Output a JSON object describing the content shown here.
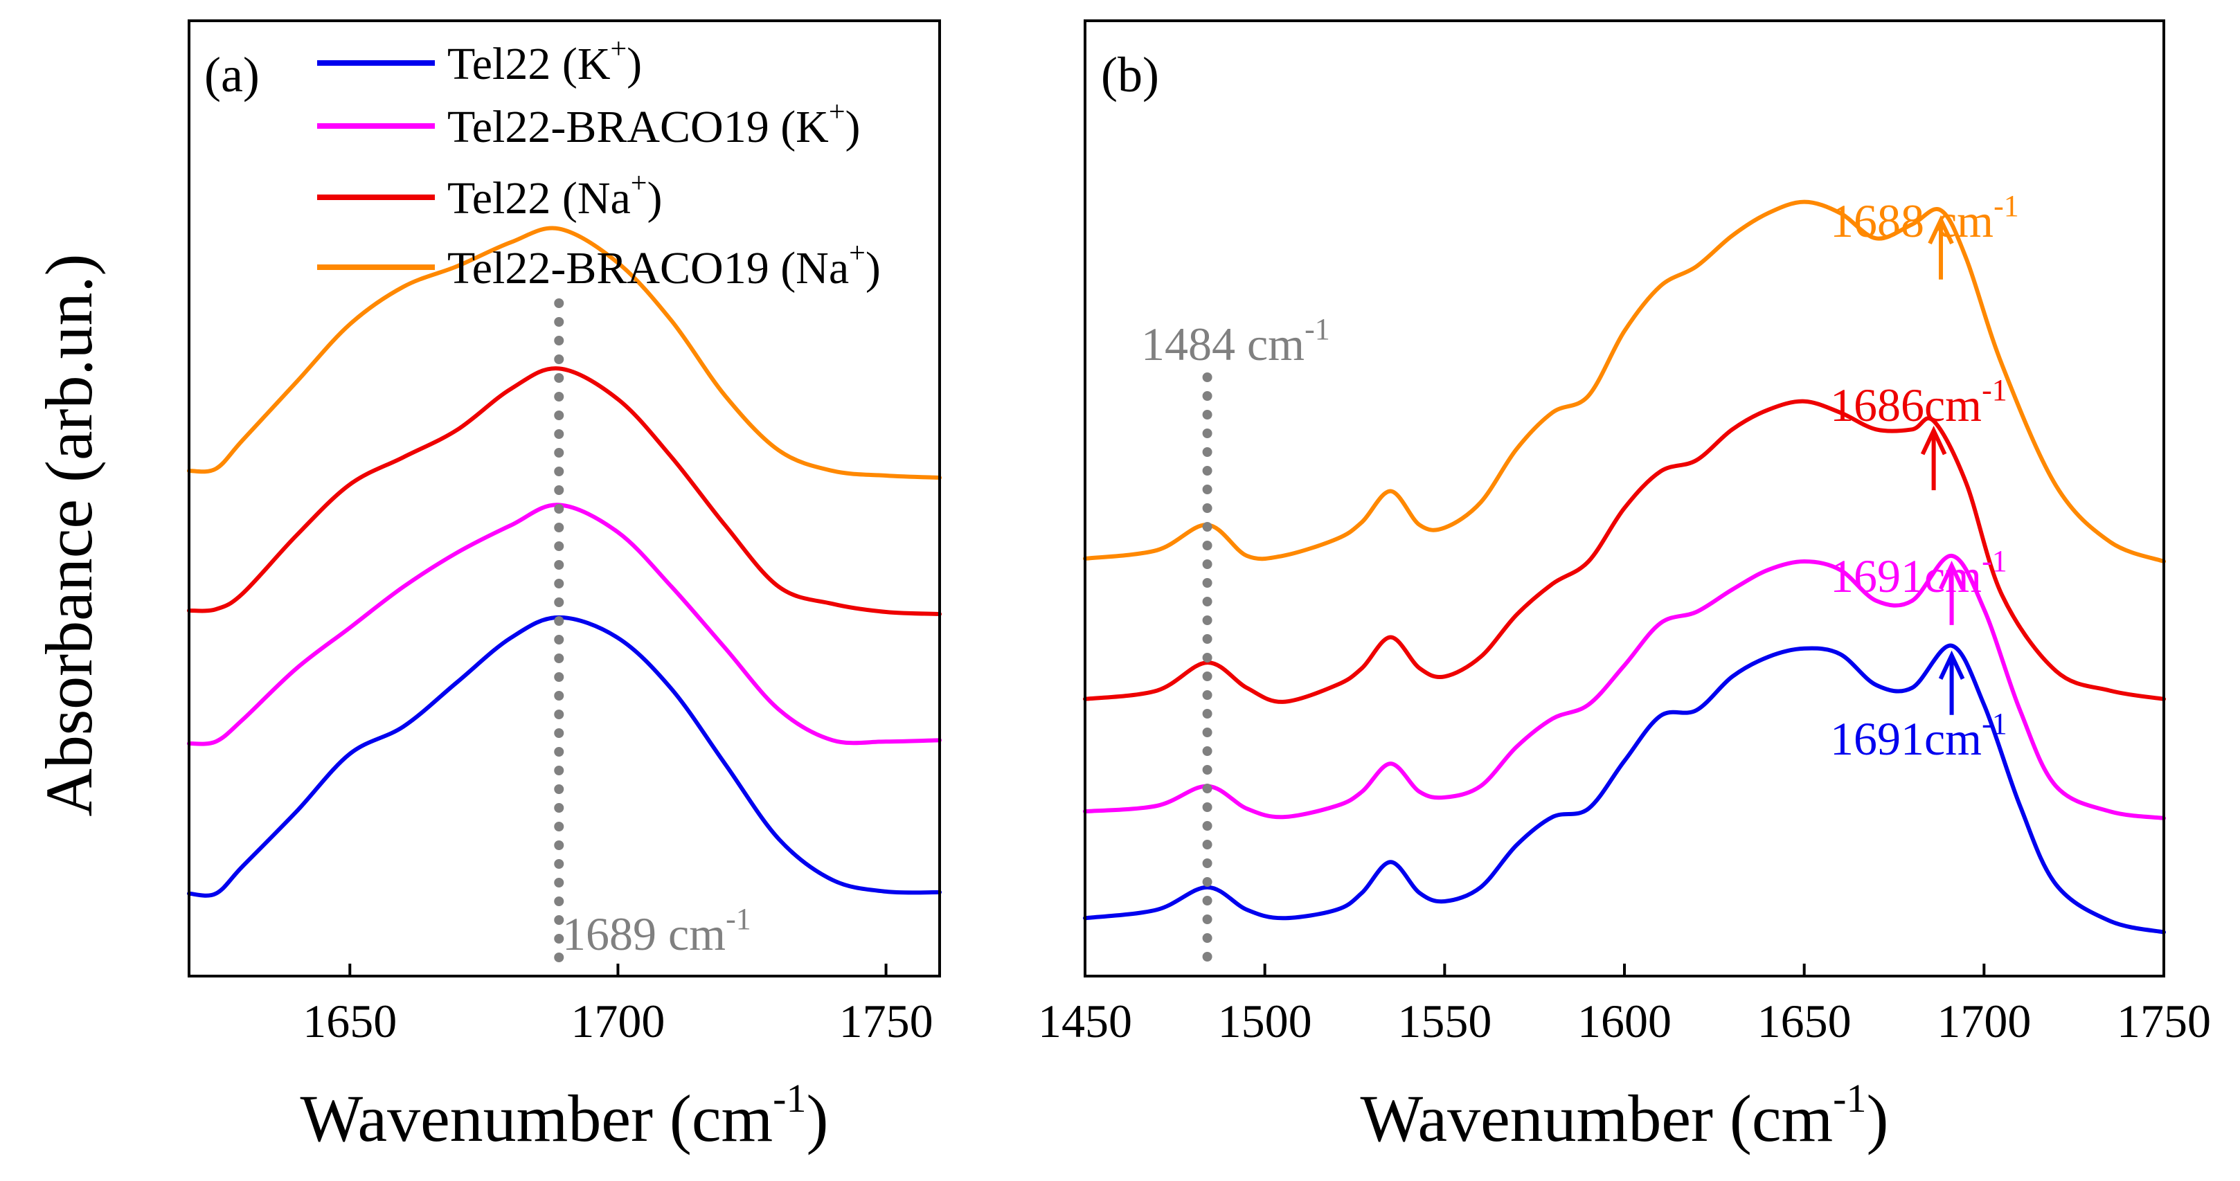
{
  "figure": {
    "ylabel": "Absorbance (arb.un.)"
  },
  "colors": {
    "tel22_k": "#0000ee",
    "tel22_braco19_k": "#ff00ff",
    "tel22_na": "#ee0000",
    "tel22_braco19_na": "#ff8800",
    "marker": "#808080",
    "axis": "#000000"
  },
  "chart_data": [
    {
      "id": "a",
      "type": "line",
      "panel_label": "(a)",
      "xlabel": "Wavenumber (cm",
      "xlabel_sup": "-1",
      "xlabel_end": ")",
      "xlim": [
        1620,
        1760
      ],
      "ylim": [
        0,
        10
      ],
      "xticks": [
        1650,
        1700,
        1750
      ],
      "legend": [
        {
          "key": "tel22_k",
          "label": "Tel22 (K",
          "sup": "+",
          "end": ")"
        },
        {
          "key": "tel22_braco19_k",
          "label": "Tel22-BRACO19 (K",
          "sup": "+",
          "end": ")"
        },
        {
          "key": "tel22_na",
          "label": "Tel22 (Na",
          "sup": "+",
          "end": ")"
        },
        {
          "key": "tel22_braco19_na",
          "label": "Tel22-BRACO19 (Na",
          "sup": "+",
          "end": ")"
        }
      ],
      "series": [
        {
          "key": "tel22_k",
          "name": "Tel22 (K+)",
          "x": [
            1620,
            1625,
            1630,
            1640,
            1650,
            1660,
            1670,
            1680,
            1689,
            1700,
            1710,
            1720,
            1730,
            1740,
            1750,
            1760
          ],
          "y": [
            0.55,
            0.55,
            0.95,
            1.75,
            2.6,
            3.0,
            3.65,
            4.3,
            4.6,
            4.3,
            3.55,
            2.45,
            1.35,
            0.75,
            0.58,
            0.57
          ]
        },
        {
          "key": "tel22_braco19_k",
          "name": "Tel22-BRACO19 (K+)",
          "x": [
            1620,
            1625,
            1630,
            1640,
            1650,
            1660,
            1670,
            1680,
            1689,
            1700,
            1710,
            1720,
            1730,
            1740,
            1750,
            1760
          ],
          "y": [
            2.75,
            2.78,
            3.1,
            3.85,
            4.45,
            5.05,
            5.55,
            5.95,
            6.25,
            5.85,
            5.05,
            4.15,
            3.25,
            2.8,
            2.78,
            2.8
          ]
        },
        {
          "key": "tel22_na",
          "name": "Tel22 (Na+)",
          "x": [
            1620,
            1625,
            1630,
            1640,
            1650,
            1660,
            1670,
            1680,
            1689,
            1700,
            1710,
            1720,
            1730,
            1740,
            1750,
            1760
          ],
          "y": [
            4.7,
            4.72,
            4.95,
            5.8,
            6.55,
            6.95,
            7.35,
            7.95,
            8.25,
            7.8,
            6.95,
            5.95,
            5.05,
            4.8,
            4.68,
            4.65
          ]
        },
        {
          "key": "tel22_braco19_na",
          "name": "Tel22-BRACO19 (Na+)",
          "x": [
            1620,
            1625,
            1630,
            1640,
            1650,
            1660,
            1670,
            1680,
            1689,
            1700,
            1710,
            1720,
            1730,
            1740,
            1750,
            1760
          ],
          "y": [
            6.75,
            6.78,
            7.2,
            8.05,
            8.9,
            9.45,
            9.75,
            10.1,
            10.3,
            9.8,
            8.95,
            7.85,
            7.05,
            6.75,
            6.68,
            6.65
          ]
        }
      ],
      "vline": {
        "x": 1689,
        "label": "1689 cm",
        "sup": "-1"
      }
    },
    {
      "id": "b",
      "type": "line",
      "panel_label": "(b)",
      "xlabel": "Wavenumber (cm",
      "xlabel_sup": "-1",
      "xlabel_end": ")",
      "xlim": [
        1450,
        1750
      ],
      "ylim": [
        0,
        13
      ],
      "xticks": [
        1450,
        1500,
        1550,
        1600,
        1650,
        1700,
        1750
      ],
      "series": [
        {
          "key": "tel22_k",
          "name": "Tel22 (K+)",
          "x": [
            1450,
            1470,
            1484,
            1495,
            1505,
            1520,
            1527,
            1535,
            1543,
            1550,
            1560,
            1570,
            1580,
            1590,
            1600,
            1610,
            1620,
            1630,
            1640,
            1650,
            1660,
            1670,
            1680,
            1691,
            1700,
            1710,
            1720,
            1735,
            1750
          ],
          "y": [
            0.6,
            0.75,
            1.15,
            0.75,
            0.6,
            0.75,
            1.05,
            1.6,
            1.05,
            0.9,
            1.15,
            1.9,
            2.4,
            2.55,
            3.4,
            4.2,
            4.3,
            4.9,
            5.25,
            5.4,
            5.3,
            4.75,
            4.7,
            5.45,
            4.4,
            2.6,
            1.2,
            0.55,
            0.35
          ]
        },
        {
          "key": "tel22_braco19_k",
          "name": "Tel22-BRACO19 (K+)",
          "x": [
            1450,
            1470,
            1484,
            1495,
            1505,
            1520,
            1527,
            1535,
            1543,
            1550,
            1560,
            1570,
            1580,
            1590,
            1600,
            1610,
            1620,
            1630,
            1640,
            1650,
            1660,
            1670,
            1680,
            1691,
            1700,
            1710,
            1720,
            1735,
            1750
          ],
          "y": [
            2.5,
            2.6,
            2.95,
            2.55,
            2.4,
            2.6,
            2.85,
            3.35,
            2.85,
            2.75,
            2.95,
            3.65,
            4.15,
            4.4,
            5.1,
            5.85,
            6.05,
            6.45,
            6.8,
            6.95,
            6.8,
            6.25,
            6.25,
            7.05,
            6.1,
            4.3,
            2.95,
            2.5,
            2.38
          ]
        },
        {
          "key": "tel22_na",
          "name": "Tel22 (Na+)",
          "x": [
            1450,
            1470,
            1484,
            1495,
            1505,
            1520,
            1527,
            1535,
            1543,
            1550,
            1560,
            1570,
            1580,
            1590,
            1600,
            1610,
            1620,
            1630,
            1640,
            1650,
            1660,
            1670,
            1680,
            1686,
            1695,
            1705,
            1720,
            1735,
            1750
          ],
          "y": [
            4.5,
            4.65,
            5.15,
            4.7,
            4.45,
            4.75,
            5.05,
            5.6,
            5.05,
            4.9,
            5.25,
            6.0,
            6.55,
            6.95,
            7.9,
            8.55,
            8.75,
            9.3,
            9.65,
            9.8,
            9.6,
            9.3,
            9.3,
            9.45,
            8.35,
            6.35,
            5.0,
            4.65,
            4.5
          ]
        },
        {
          "key": "tel22_braco19_na",
          "name": "Tel22-BRACO19 (Na+)",
          "x": [
            1450,
            1470,
            1484,
            1495,
            1505,
            1520,
            1527,
            1535,
            1543,
            1550,
            1560,
            1570,
            1580,
            1590,
            1600,
            1610,
            1620,
            1630,
            1640,
            1650,
            1660,
            1670,
            1680,
            1688,
            1695,
            1705,
            1720,
            1735,
            1750
          ],
          "y": [
            7.0,
            7.15,
            7.6,
            7.05,
            7.05,
            7.35,
            7.65,
            8.2,
            7.6,
            7.55,
            8.0,
            8.95,
            9.6,
            9.9,
            11.05,
            11.85,
            12.2,
            12.75,
            13.15,
            13.35,
            13.15,
            12.7,
            12.95,
            13.2,
            12.35,
            10.45,
            8.3,
            7.3,
            6.95
          ]
        }
      ],
      "vline": {
        "x": 1484,
        "label": "1484 cm",
        "sup": "-1"
      },
      "annotations": [
        {
          "key": "tel22_braco19_na",
          "x": 1688,
          "label": "1688 cm",
          "sup": "-1"
        },
        {
          "key": "tel22_na",
          "x": 1686,
          "label": "1686cm",
          "sup": "-1"
        },
        {
          "key": "tel22_braco19_k",
          "x": 1691,
          "label": "1691cm",
          "sup": "-1"
        },
        {
          "key": "tel22_k",
          "x": 1691,
          "label": "1691cm",
          "sup": "-1"
        }
      ]
    }
  ]
}
